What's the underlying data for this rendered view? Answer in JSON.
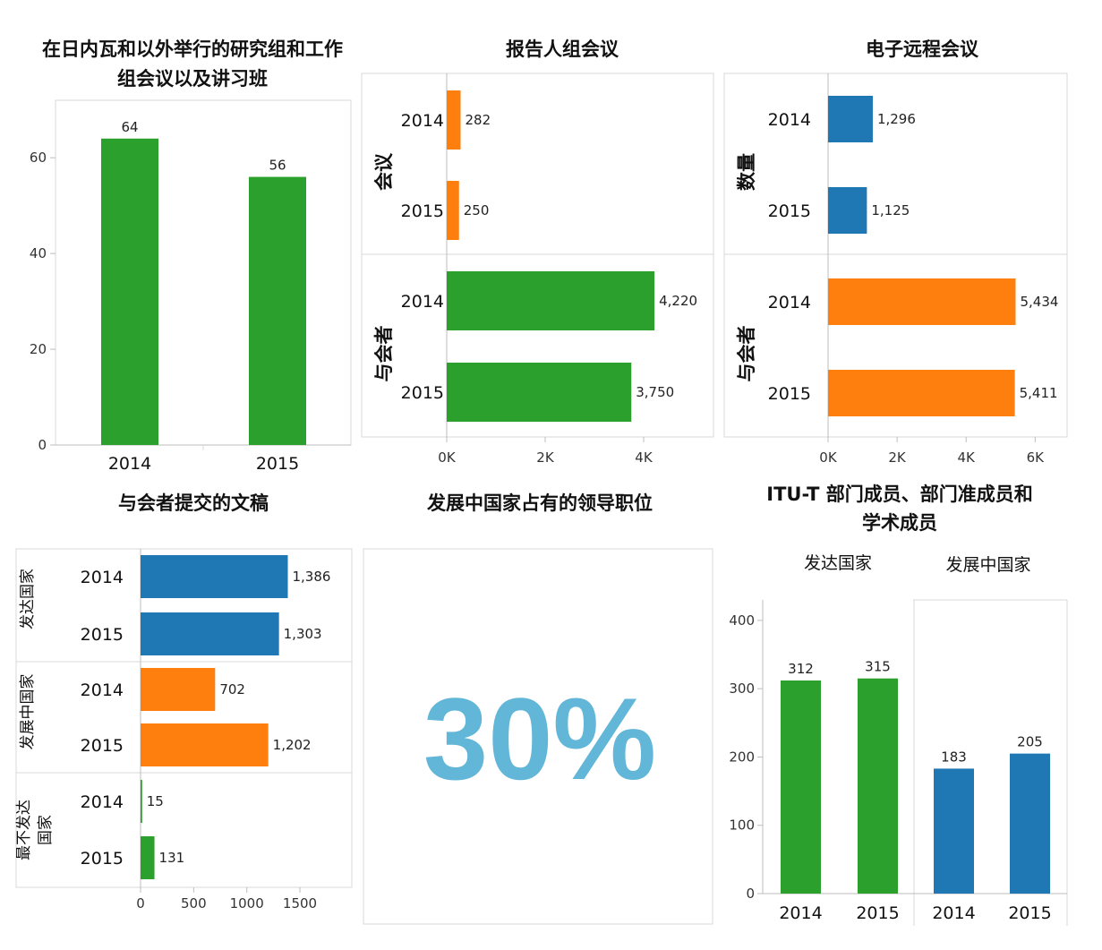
{
  "colors": {
    "green": "#2ca02c",
    "orange": "#ff7f0e",
    "blue": "#1f77b4",
    "kpi": "#62b6d8"
  },
  "chart_data": [
    {
      "id": "c1",
      "type": "bar",
      "title": "在日内瓦和以外举行的研究组和工作组会议以及讲习班",
      "title_lines": [
        "在日内瓦和以外举行的研究组和工作",
        "组会议以及讲习班"
      ],
      "categories": [
        "2014",
        "2015"
      ],
      "values": [
        64,
        56
      ],
      "value_labels": [
        "64",
        "56"
      ],
      "yticks": [
        "0",
        "20",
        "40",
        "60"
      ],
      "ylim": [
        0,
        72
      ],
      "color": "green"
    },
    {
      "id": "c2",
      "type": "bar",
      "orientation": "horizontal",
      "title": "报告人组会议",
      "groups": [
        {
          "label": "会议",
          "categories": [
            "2014",
            "2015"
          ],
          "values": [
            282,
            250
          ],
          "value_labels": [
            "282",
            "250"
          ],
          "color": "orange"
        },
        {
          "label": "与会者",
          "categories": [
            "2014",
            "2015"
          ],
          "values": [
            4220,
            3750
          ],
          "value_labels": [
            "4,220",
            "3,750"
          ],
          "color": "green"
        }
      ],
      "xticks": [
        "0K",
        "2K",
        "4K"
      ],
      "xlim": [
        0,
        5400
      ]
    },
    {
      "id": "c3",
      "type": "bar",
      "orientation": "horizontal",
      "title": "电子远程会议",
      "groups": [
        {
          "label": "数量",
          "categories": [
            "2014",
            "2015"
          ],
          "values": [
            1296,
            1125
          ],
          "value_labels": [
            "1,296",
            "1,125"
          ],
          "color": "blue"
        },
        {
          "label": "与会者",
          "categories": [
            "2014",
            "2015"
          ],
          "values": [
            5434,
            5411
          ],
          "value_labels": [
            "5,434",
            "5,411"
          ],
          "color": "orange"
        }
      ],
      "xticks": [
        "0K",
        "2K",
        "4K",
        "6K"
      ],
      "xlim": [
        0,
        6900
      ]
    },
    {
      "id": "c4",
      "type": "bar",
      "orientation": "horizontal",
      "title": "与会者提交的文稿",
      "groups": [
        {
          "label": "发达国家",
          "categories": [
            "2014",
            "2015"
          ],
          "values": [
            1386,
            1303
          ],
          "value_labels": [
            "1,386",
            "1,303"
          ],
          "color": "blue"
        },
        {
          "label": "发展中国家",
          "categories": [
            "2014",
            "2015"
          ],
          "values": [
            702,
            1202
          ],
          "value_labels": [
            "702",
            "1,202"
          ],
          "color": "orange"
        },
        {
          "label": "最不发达国家",
          "label_lines": [
            "最不发达",
            "国家"
          ],
          "categories": [
            "2014",
            "2015"
          ],
          "values": [
            15,
            131
          ],
          "value_labels": [
            "15",
            "131"
          ],
          "color": "green"
        }
      ],
      "xticks": [
        "0",
        "500",
        "1000",
        "1500"
      ],
      "xlim": [
        0,
        1980
      ]
    },
    {
      "id": "c5",
      "type": "kpi",
      "title": "发展中国家占有的领导职位",
      "value": 30,
      "value_label": "30%"
    },
    {
      "id": "c6",
      "type": "bar",
      "title": "ITU-T 部门成员、部门准成员和学术成员",
      "title_lines": [
        "ITU-T 部门成员、部门准成员和",
        "学术成员"
      ],
      "panels": [
        {
          "label": "发达国家",
          "categories": [
            "2014",
            "2015"
          ],
          "values": [
            312,
            315
          ],
          "value_labels": [
            "312",
            "315"
          ],
          "color": "green"
        },
        {
          "label": "发展中国家",
          "categories": [
            "2014",
            "2015"
          ],
          "values": [
            183,
            205
          ],
          "value_labels": [
            "183",
            "205"
          ],
          "color": "blue"
        }
      ],
      "yticks": [
        "0",
        "100",
        "200",
        "300",
        "400"
      ],
      "ylim": [
        0,
        430
      ]
    }
  ]
}
